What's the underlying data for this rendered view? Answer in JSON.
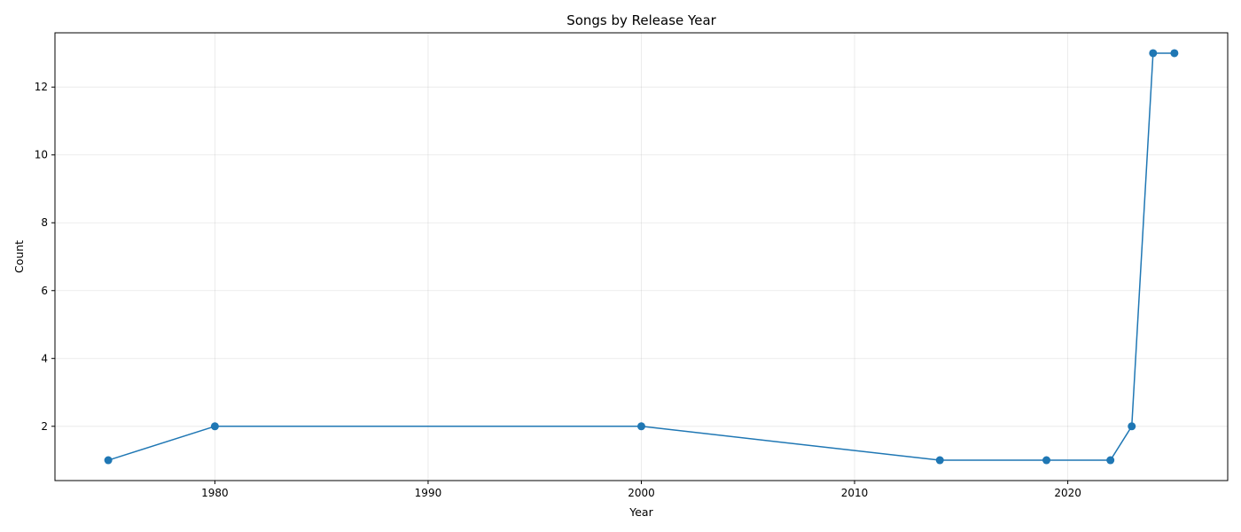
{
  "chart_data": {
    "type": "line",
    "title": "Songs by Release Year",
    "xlabel": "Year",
    "ylabel": "Count",
    "xlim": [
      1972.5,
      2027.5
    ],
    "ylim": [
      0.4,
      13.6
    ],
    "x_ticks": [
      1980,
      1990,
      2000,
      2010,
      2020
    ],
    "y_ticks": [
      2,
      4,
      6,
      8,
      10,
      12
    ],
    "grid": true,
    "series": [
      {
        "color": "#1f77b4",
        "marker": "circle",
        "points": [
          {
            "x": 1975,
            "y": 1
          },
          {
            "x": 1980,
            "y": 2
          },
          {
            "x": 2000,
            "y": 2
          },
          {
            "x": 2014,
            "y": 1
          },
          {
            "x": 2019,
            "y": 1
          },
          {
            "x": 2022,
            "y": 1
          },
          {
            "x": 2023,
            "y": 2
          },
          {
            "x": 2024,
            "y": 13
          },
          {
            "x": 2025,
            "y": 13
          }
        ]
      }
    ]
  }
}
